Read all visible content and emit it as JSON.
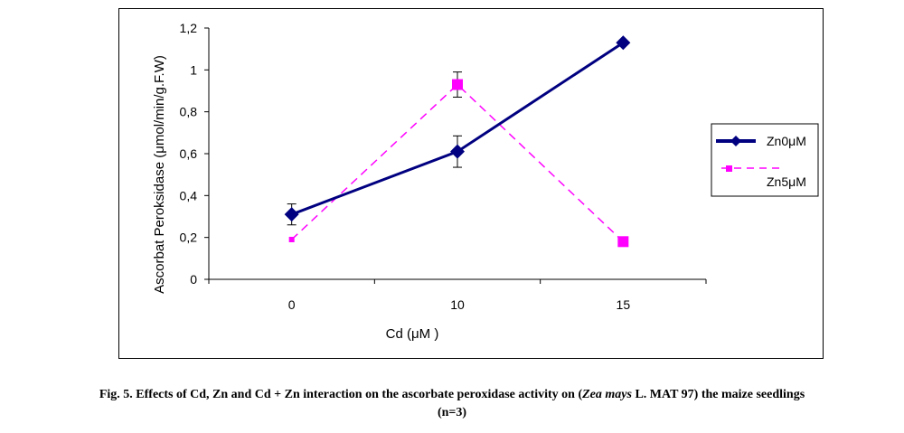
{
  "chart_data": {
    "type": "line",
    "categories": [
      "0",
      "10",
      "15"
    ],
    "series": [
      {
        "name": "Zn0μM",
        "values": [
          0.31,
          0.61,
          1.13
        ],
        "errors": [
          0.05,
          0.075,
          0
        ],
        "color": "#000080",
        "style": "solid",
        "marker": "diamond"
      },
      {
        "name": "Zn5μM",
        "values": [
          0.19,
          0.93,
          0.18
        ],
        "errors": [
          0,
          0.06,
          0
        ],
        "color": "#ff00ff",
        "style": "dashed",
        "marker": "square"
      }
    ],
    "ylim": [
      0,
      1.2
    ],
    "yticks": [
      "0",
      "0,2",
      "0,4",
      "0,6",
      "0,8",
      "1",
      "1,2"
    ],
    "xlabel": "Cd  (μM )",
    "ylabel": "Ascorbat  Peroksidase (μmol/min/g.F.W)",
    "legend_position": "right"
  },
  "caption": {
    "prefix": "Fig. 5. Effects  of Cd, Zn and Cd + Zn  interaction  on the ascorbate peroxidase activity on  (",
    "species": "Zea mays",
    "suffix": " L. MAT 97) the maize  seedlings",
    "line2": "(n=3)"
  }
}
